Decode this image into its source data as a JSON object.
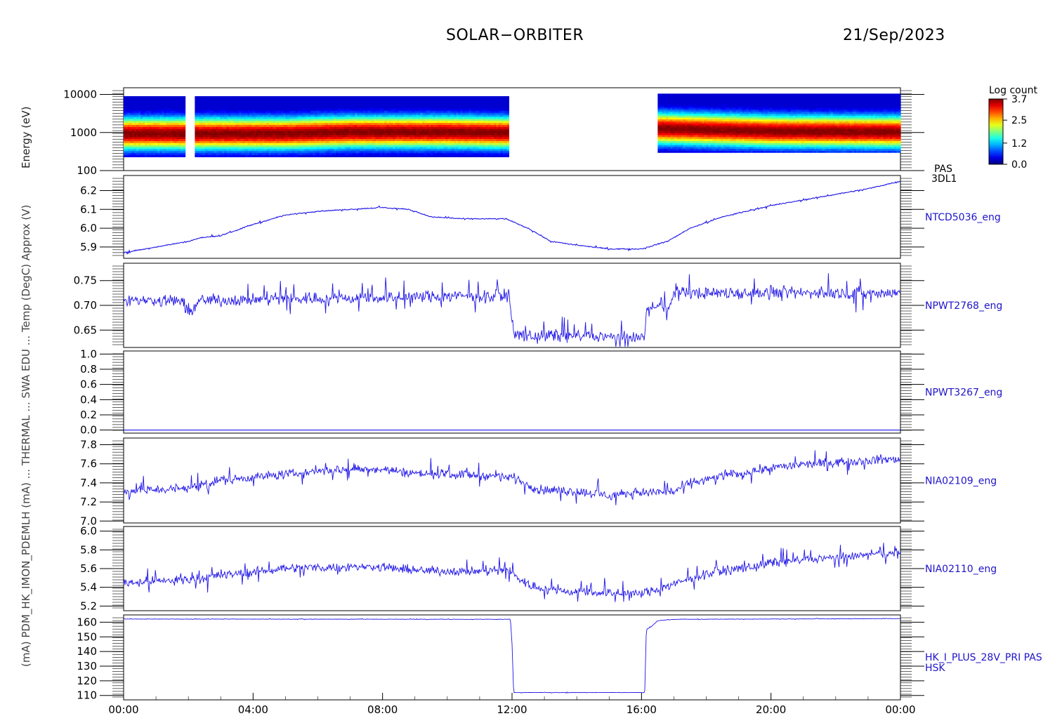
{
  "header": {
    "mission": "SOLAR−ORBITER",
    "date": "21/Sep/2023"
  },
  "left_labels": {
    "top": "Energy (eV)",
    "garbled": "(mA) PDM_HK_IMON_PDEMLH (mA) ... THERMAL ... SWA EDU ... Temp (DegC) Approx (V)"
  },
  "chart_data": {
    "type": "line",
    "x_ticks": [
      "00:00",
      "04:00",
      "08:00",
      "12:00",
      "16:00",
      "20:00",
      "00:00"
    ],
    "x_range_hours": [
      0,
      24
    ],
    "panels": [
      {
        "kind": "spectrogram",
        "right_label": [
          "PAS",
          "3DL1"
        ],
        "y_ticks": [
          "10000",
          "1000",
          "100"
        ],
        "y_scale": "log",
        "ylim": [
          100,
          15000
        ],
        "colorbar": {
          "title": "Log count",
          "ticks": [
            "3.7",
            "2.5",
            "1.2",
            "0.0"
          ],
          "range": [
            0.0,
            3.7
          ]
        },
        "segments": [
          [
            0.0,
            1.9
          ],
          [
            2.2,
            11.9
          ],
          [
            16.5,
            24.0
          ]
        ],
        "peak_energy_eV": [
          [
            0,
            950
          ],
          [
            5,
            950
          ],
          [
            7,
            1050
          ],
          [
            10,
            1050
          ],
          [
            12,
            1000
          ],
          [
            16.5,
            1300
          ],
          [
            20,
            1100
          ],
          [
            24,
            1050
          ]
        ]
      },
      {
        "kind": "line",
        "right_label": "NTCD5036_eng",
        "y_ticks": [
          "6.2",
          "6.1",
          "6.0",
          "5.9"
        ],
        "ylim": [
          5.84,
          6.28
        ],
        "points": [
          [
            0,
            5.87
          ],
          [
            1,
            5.9
          ],
          [
            2,
            5.93
          ],
          [
            2.4,
            5.95
          ],
          [
            3,
            5.96
          ],
          [
            4,
            6.02
          ],
          [
            5,
            6.07
          ],
          [
            6,
            6.09
          ],
          [
            7,
            6.1
          ],
          [
            8,
            6.11
          ],
          [
            8.8,
            6.1
          ],
          [
            9.5,
            6.06
          ],
          [
            10.5,
            6.05
          ],
          [
            11.8,
            6.05
          ],
          [
            12.5,
            6.0
          ],
          [
            13.2,
            5.93
          ],
          [
            14,
            5.91
          ],
          [
            15,
            5.89
          ],
          [
            16,
            5.89
          ],
          [
            16.8,
            5.93
          ],
          [
            17.5,
            6.0
          ],
          [
            18.5,
            6.06
          ],
          [
            20,
            6.12
          ],
          [
            21,
            6.15
          ],
          [
            22,
            6.18
          ],
          [
            23,
            6.21
          ],
          [
            24,
            6.25
          ]
        ],
        "noise": 0.004
      },
      {
        "kind": "line",
        "right_label": "NPWT2768_eng",
        "y_ticks": [
          "0.75",
          "0.70",
          "0.65"
        ],
        "ylim": [
          0.615,
          0.785
        ],
        "points": [
          [
            0,
            0.71
          ],
          [
            1.85,
            0.71
          ],
          [
            1.9,
            0.69
          ],
          [
            2.2,
            0.69
          ],
          [
            2.3,
            0.71
          ],
          [
            11.9,
            0.72
          ],
          [
            12.0,
            0.68
          ],
          [
            12.05,
            0.64
          ],
          [
            16.1,
            0.635
          ],
          [
            16.15,
            0.69
          ],
          [
            16.9,
            0.7
          ],
          [
            17.0,
            0.725
          ],
          [
            24,
            0.725
          ]
        ],
        "noise": 0.018
      },
      {
        "kind": "line",
        "right_label": "NPWT3267_eng",
        "y_ticks": [
          "1.0",
          "0.8",
          "0.6",
          "0.4",
          "0.2",
          "0.0"
        ],
        "ylim": [
          -0.04,
          1.04
        ],
        "points": [
          [
            0,
            0.0
          ],
          [
            24,
            0.0
          ]
        ],
        "noise": 0
      },
      {
        "kind": "line",
        "right_label": "NIA02109_eng",
        "y_ticks": [
          "7.8",
          "7.6",
          "7.4",
          "7.2",
          "7.0"
        ],
        "ylim": [
          6.98,
          7.87
        ],
        "points": [
          [
            0,
            7.31
          ],
          [
            2,
            7.35
          ],
          [
            3,
            7.43
          ],
          [
            4,
            7.46
          ],
          [
            5,
            7.49
          ],
          [
            7,
            7.55
          ],
          [
            8,
            7.54
          ],
          [
            9,
            7.5
          ],
          [
            11,
            7.48
          ],
          [
            12,
            7.46
          ],
          [
            12.8,
            7.33
          ],
          [
            14,
            7.31
          ],
          [
            15,
            7.27
          ],
          [
            16,
            7.3
          ],
          [
            17,
            7.31
          ],
          [
            17.5,
            7.4
          ],
          [
            18.5,
            7.47
          ],
          [
            20,
            7.56
          ],
          [
            22,
            7.62
          ],
          [
            24,
            7.65
          ]
        ],
        "noise": 0.07
      },
      {
        "kind": "line",
        "right_label": "NIA02110_eng",
        "y_ticks": [
          "6.0",
          "5.8",
          "5.6",
          "5.4",
          "5.2"
        ],
        "ylim": [
          5.15,
          6.05
        ],
        "points": [
          [
            0,
            5.45
          ],
          [
            2,
            5.48
          ],
          [
            3,
            5.53
          ],
          [
            4,
            5.56
          ],
          [
            5,
            5.61
          ],
          [
            8,
            5.62
          ],
          [
            9,
            5.58
          ],
          [
            11,
            5.57
          ],
          [
            11.9,
            5.58
          ],
          [
            12.5,
            5.42
          ],
          [
            13.5,
            5.36
          ],
          [
            16,
            5.33
          ],
          [
            17,
            5.43
          ],
          [
            18,
            5.55
          ],
          [
            19,
            5.6
          ],
          [
            20,
            5.66
          ],
          [
            22,
            5.72
          ],
          [
            24,
            5.77
          ]
        ],
        "noise": 0.07
      },
      {
        "kind": "line",
        "right_label": [
          "HK_I_PLUS_28V_PRI PAS",
          "HSK"
        ],
        "y_ticks": [
          "160",
          "150",
          "140",
          "130",
          "120",
          "110"
        ],
        "ylim": [
          107,
          165
        ],
        "points": [
          [
            0,
            162.2
          ],
          [
            11.95,
            162.0
          ],
          [
            12.0,
            145
          ],
          [
            12.05,
            112
          ],
          [
            16.1,
            112
          ],
          [
            16.15,
            155
          ],
          [
            16.3,
            157
          ],
          [
            16.5,
            161
          ],
          [
            17,
            162
          ],
          [
            24,
            162.5
          ]
        ],
        "noise": 0.2
      }
    ]
  }
}
